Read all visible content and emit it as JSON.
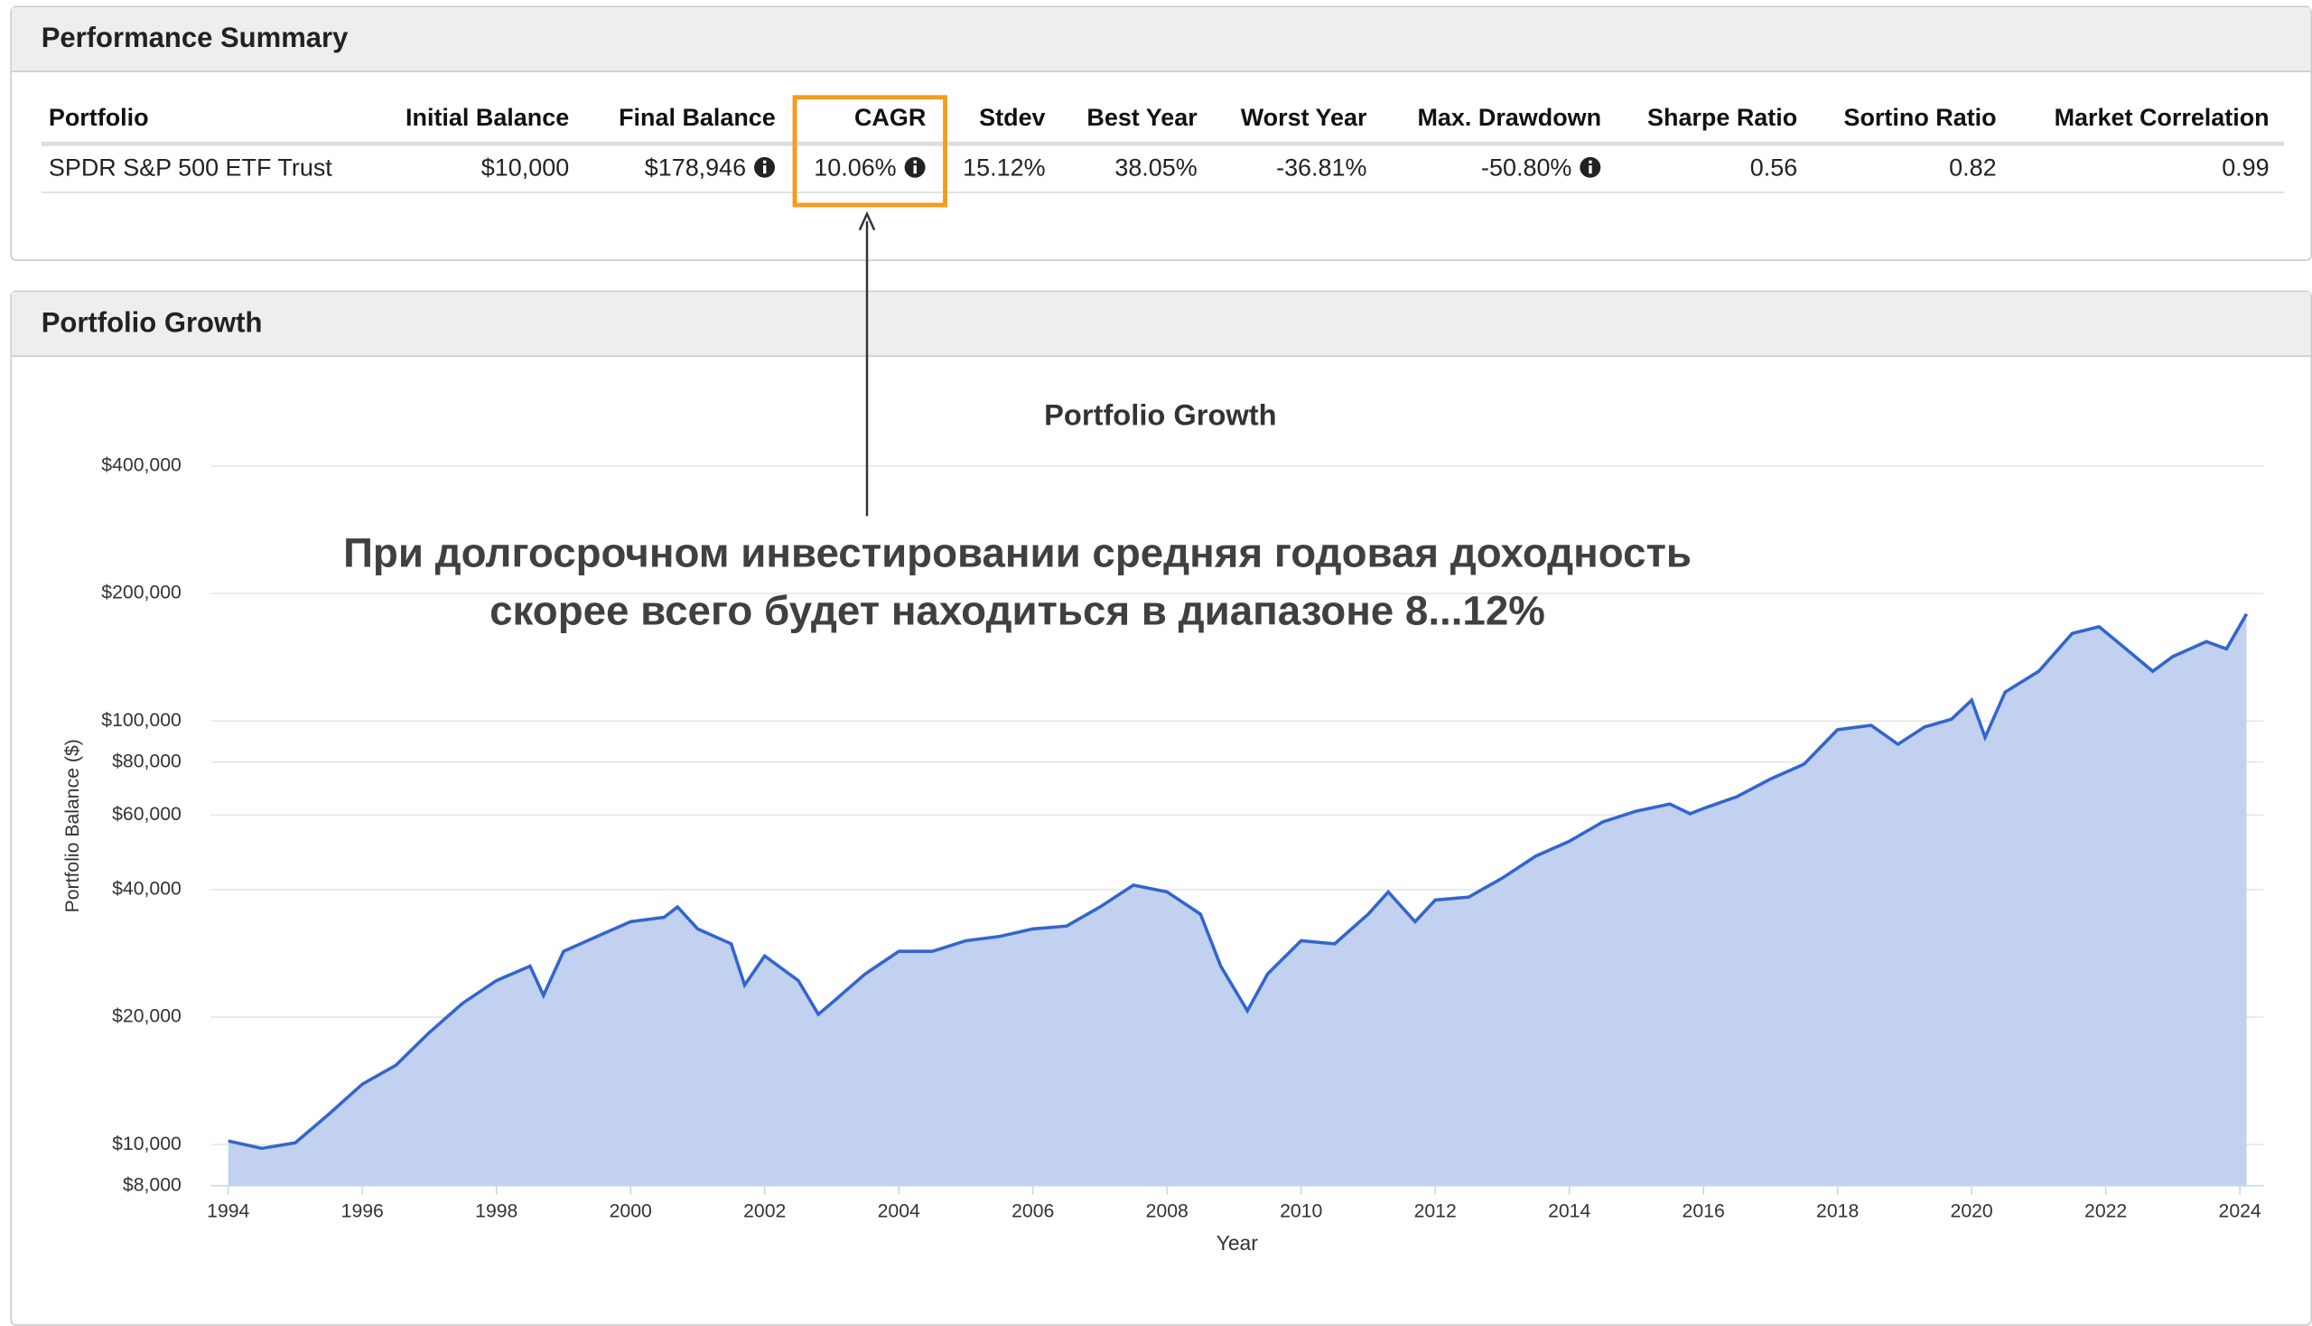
{
  "summary_panel": {
    "title": "Performance Summary"
  },
  "table": {
    "headers": [
      "Portfolio",
      "Initial Balance",
      "Final Balance",
      "CAGR",
      "Stdev",
      "Best Year",
      "Worst Year",
      "Max. Drawdown",
      "Sharpe Ratio",
      "Sortino Ratio",
      "Market Correlation"
    ],
    "rows": [
      [
        "SPDR S&P 500 ETF Trust",
        "$10,000",
        "$178,946",
        "10.06%",
        "15.12%",
        "38.05%",
        "-36.81%",
        "-50.80%",
        "0.56",
        "0.82",
        "0.99"
      ]
    ]
  },
  "growth_panel": {
    "title": "Portfolio Growth"
  },
  "annotation": [
    "При долгосрочном инвестировании средняя годовая доходность",
    "скорее всего будет находиться в диапазоне 8...12%"
  ],
  "chart_data": {
    "type": "area",
    "title": "Portfolio Growth",
    "x_label": "Year",
    "y_label": "Portfolio Balance ($)",
    "yscale": "log",
    "grid": true,
    "x": [
      1994.0,
      1994.5,
      1995.0,
      1995.5,
      1996.0,
      1996.5,
      1997.0,
      1997.5,
      1998.0,
      1998.5,
      1998.7,
      1999.0,
      1999.5,
      2000.0,
      2000.5,
      2000.7,
      2001.0,
      2001.5,
      2001.7,
      2002.0,
      2002.5,
      2002.8,
      2003.0,
      2003.5,
      2004.0,
      2004.5,
      2005.0,
      2005.5,
      2006.0,
      2006.5,
      2007.0,
      2007.5,
      2008.0,
      2008.5,
      2008.8,
      2009.2,
      2009.5,
      2010.0,
      2010.5,
      2011.0,
      2011.3,
      2011.7,
      2012.0,
      2012.5,
      2013.0,
      2013.5,
      2014.0,
      2014.5,
      2015.0,
      2015.5,
      2015.8,
      2016.0,
      2016.5,
      2017.0,
      2017.5,
      2018.0,
      2018.5,
      2018.9,
      2019.3,
      2019.7,
      2020.0,
      2020.2,
      2020.5,
      2021.0,
      2021.5,
      2021.9,
      2022.3,
      2022.7,
      2023.0,
      2023.5,
      2023.8,
      2024.1
    ],
    "series": [
      {
        "color": "#3366cc",
        "fill": "#c2d1f0",
        "values": [
          10200,
          9800,
          10100,
          11800,
          13900,
          15400,
          18400,
          21600,
          24400,
          26400,
          22500,
          28600,
          31000,
          33600,
          34400,
          36400,
          32300,
          29800,
          23800,
          27900,
          24400,
          20300,
          21600,
          25300,
          28600,
          28600,
          30300,
          31000,
          32300,
          32800,
          36400,
          41000,
          39500,
          35000,
          26400,
          20700,
          25300,
          30300,
          29800,
          35000,
          39500,
          33600,
          37800,
          38400,
          42600,
          48000,
          52000,
          57800,
          61300,
          63700,
          60400,
          62200,
          66300,
          73000,
          79100,
          95400,
          97700,
          88100,
          96900,
          101000,
          112000,
          91500,
          117000,
          131000,
          161000,
          167000,
          148000,
          131000,
          142000,
          154000,
          148000,
          178946
        ]
      }
    ],
    "xlim": [
      1993.74,
      2024.35
    ],
    "xticks": [
      1994,
      1996,
      1998,
      2000,
      2002,
      2004,
      2006,
      2008,
      2010,
      2012,
      2014,
      2016,
      2018,
      2020,
      2022,
      2024
    ],
    "ylim": [
      8000,
      400000
    ],
    "yticks": [
      {
        "value": 8000,
        "label": "$8,000"
      },
      {
        "value": 10000,
        "label": "$10,000"
      },
      {
        "value": 20000,
        "label": "$20,000"
      },
      {
        "value": 40000,
        "label": "$40,000"
      },
      {
        "value": 60000,
        "label": "$60,000"
      },
      {
        "value": 80000,
        "label": "$80,000"
      },
      {
        "value": 100000,
        "label": "$100,000"
      },
      {
        "value": 200000,
        "label": "$200,000"
      },
      {
        "value": 400000,
        "label": "$400,000"
      }
    ]
  }
}
